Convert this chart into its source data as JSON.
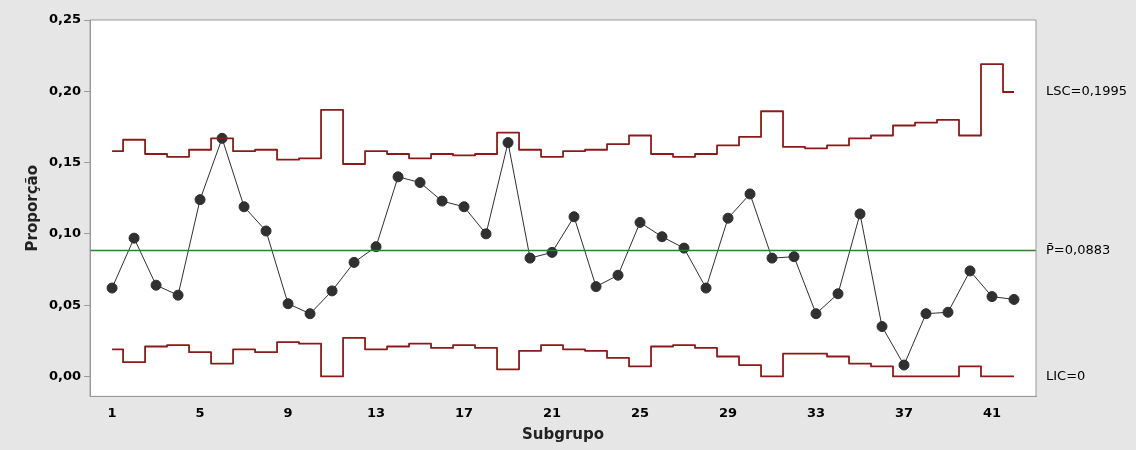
{
  "chart_data": {
    "type": "line",
    "xlabel": "Subgrupo",
    "ylabel": "Proporção",
    "x": [
      1,
      2,
      3,
      4,
      5,
      6,
      7,
      8,
      9,
      10,
      11,
      12,
      13,
      14,
      15,
      16,
      17,
      18,
      19,
      20,
      21,
      22,
      23,
      24,
      25,
      26,
      27,
      28,
      29,
      30,
      31,
      32,
      33,
      34,
      35,
      36,
      37,
      38,
      39,
      40,
      41,
      42
    ],
    "series": [
      {
        "type": "step",
        "color": "#8b1a1a",
        "marker": "none",
        "values": [
          0.158,
          0.166,
          0.156,
          0.154,
          0.159,
          0.167,
          0.158,
          0.159,
          0.152,
          0.153,
          0.187,
          0.149,
          0.158,
          0.156,
          0.153,
          0.156,
          0.155,
          0.156,
          0.171,
          0.159,
          0.154,
          0.158,
          0.159,
          0.163,
          0.169,
          0.156,
          0.154,
          0.156,
          0.162,
          0.168,
          0.186,
          0.161,
          0.16,
          0.162,
          0.167,
          0.169,
          0.176,
          0.178,
          0.18,
          0.169,
          0.219,
          0.1995
        ]
      },
      {
        "type": "step",
        "color": "#8b1a1a",
        "marker": "none",
        "values": [
          0.019,
          0.01,
          0.021,
          0.022,
          0.017,
          0.009,
          0.019,
          0.017,
          0.024,
          0.023,
          0,
          0.027,
          0.019,
          0.021,
          0.023,
          0.02,
          0.022,
          0.02,
          0.005,
          0.018,
          0.022,
          0.019,
          0.018,
          0.013,
          0.007,
          0.021,
          0.022,
          0.02,
          0.014,
          0.008,
          0,
          0.016,
          0.016,
          0.014,
          0.009,
          0.007,
          0,
          0,
          0,
          0.007,
          0,
          0
        ]
      },
      {
        "color": "#303030",
        "marker": "circle",
        "values": [
          0.062,
          0.097,
          0.064,
          0.057,
          0.124,
          0.167,
          0.119,
          0.102,
          0.051,
          0.044,
          0.06,
          0.08,
          0.091,
          0.14,
          0.136,
          0.123,
          0.119,
          0.1,
          0.164,
          0.083,
          0.087,
          0.112,
          0.063,
          0.071,
          0.108,
          0.098,
          0.09,
          0.062,
          0.111,
          0.128,
          0.083,
          0.084,
          0.044,
          0.058,
          0.114,
          0.035,
          0.008,
          0.044,
          0.045,
          0.074,
          0.056,
          0.054
        ]
      }
    ],
    "ref_lines": [
      {
        "axis": "y",
        "value": 0.0883,
        "label": "P̄=0,0883",
        "color": "#2e7d32"
      }
    ],
    "annotations": [
      {
        "text": "LSC=0,1995",
        "x": 42,
        "y": 0.1995
      },
      {
        "text": "LIC=0",
        "x": 42,
        "y": 0
      }
    ],
    "xlim": [
      0,
      43
    ],
    "xticks": [
      1,
      5,
      9,
      13,
      17,
      21,
      25,
      29,
      33,
      37,
      41
    ],
    "ylim": [
      -0.014,
      0.25
    ],
    "yticks": [
      {
        "value": 0,
        "label": "0,00"
      },
      {
        "value": 0.05,
        "label": "0,05"
      },
      {
        "value": 0.1,
        "label": "0,10"
      },
      {
        "value": 0.15,
        "label": "0,15"
      },
      {
        "value": 0.2,
        "label": "0,20"
      },
      {
        "value": 0.25,
        "label": "0,25"
      }
    ],
    "grid": false,
    "legend": false
  }
}
